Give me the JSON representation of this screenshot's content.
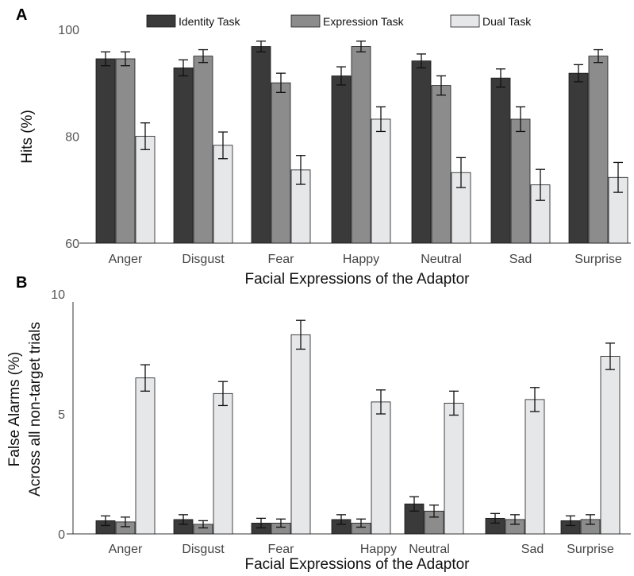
{
  "colors": {
    "identity": "#3a3a3a",
    "expression": "#8c8c8c",
    "dual": "#e6e7e9",
    "bar_stroke": "#1a1a1a",
    "axis": "#333333"
  },
  "chart_data": [
    {
      "panel": "A",
      "type": "bar",
      "title": "",
      "xlabel": "Facial Expressions of the Adaptor",
      "ylabel": "Hits (%)",
      "ylim": [
        60,
        100
      ],
      "yticks": [
        60,
        80,
        100
      ],
      "categories": [
        "Anger",
        "Disgust",
        "Fear",
        "Happy",
        "Neutral",
        "Sad",
        "Surprise"
      ],
      "legend_position": "top",
      "series": [
        {
          "name": "Identity Task",
          "color": "identity",
          "values": [
            94.5,
            92.8,
            96.8,
            91.3,
            94.1,
            90.9,
            91.8
          ],
          "errors": [
            1.3,
            1.5,
            1.0,
            1.7,
            1.3,
            1.7,
            1.6
          ]
        },
        {
          "name": "Expression Task",
          "color": "expression",
          "values": [
            94.5,
            95.0,
            90.0,
            96.8,
            89.5,
            83.2,
            95.0
          ],
          "errors": [
            1.3,
            1.2,
            1.8,
            1.0,
            1.8,
            2.3,
            1.2
          ]
        },
        {
          "name": "Dual Task",
          "color": "dual",
          "values": [
            80.0,
            78.3,
            73.7,
            83.2,
            73.2,
            70.9,
            72.3
          ],
          "errors": [
            2.5,
            2.5,
            2.7,
            2.3,
            2.8,
            2.9,
            2.8
          ]
        }
      ]
    },
    {
      "panel": "B",
      "type": "bar",
      "title": "",
      "xlabel": "Facial Expressions of the Adaptor",
      "ylabel": "False Alarms (%)",
      "ylabel2": "Across all non-target trials",
      "ylim": [
        0,
        10
      ],
      "yticks": [
        0,
        5,
        10
      ],
      "categories": [
        "Anger",
        "Disgust",
        "Fear",
        "Happy",
        "Neutral",
        "Sad",
        "Surprise"
      ],
      "series": [
        {
          "name": "Identity Task",
          "color": "identity",
          "values": [
            0.55,
            0.6,
            0.45,
            0.6,
            1.25,
            0.65,
            0.55
          ],
          "errors": [
            0.2,
            0.2,
            0.2,
            0.2,
            0.3,
            0.2,
            0.2
          ]
        },
        {
          "name": "Expression Task",
          "color": "expression",
          "values": [
            0.5,
            0.4,
            0.45,
            0.45,
            0.95,
            0.6,
            0.6
          ],
          "errors": [
            0.2,
            0.15,
            0.17,
            0.17,
            0.25,
            0.2,
            0.2
          ]
        },
        {
          "name": "Dual Task",
          "color": "dual",
          "values": [
            6.5,
            5.85,
            8.3,
            5.5,
            5.45,
            5.6,
            7.4
          ],
          "errors": [
            0.55,
            0.5,
            0.6,
            0.5,
            0.5,
            0.5,
            0.55
          ]
        }
      ]
    }
  ]
}
